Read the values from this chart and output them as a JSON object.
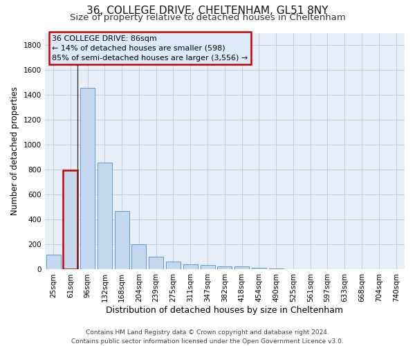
{
  "title1": "36, COLLEGE DRIVE, CHELTENHAM, GL51 8NY",
  "title2": "Size of property relative to detached houses in Cheltenham",
  "xlabel": "Distribution of detached houses by size in Cheltenham",
  "ylabel": "Number of detached properties",
  "footnote1": "Contains HM Land Registry data © Crown copyright and database right 2024.",
  "footnote2": "Contains public sector information licensed under the Open Government Licence v3.0.",
  "categories": [
    "25sqm",
    "61sqm",
    "96sqm",
    "132sqm",
    "168sqm",
    "204sqm",
    "239sqm",
    "275sqm",
    "311sqm",
    "347sqm",
    "382sqm",
    "418sqm",
    "454sqm",
    "490sqm",
    "525sqm",
    "561sqm",
    "597sqm",
    "633sqm",
    "668sqm",
    "704sqm",
    "740sqm"
  ],
  "values": [
    120,
    795,
    1460,
    860,
    470,
    200,
    100,
    65,
    40,
    35,
    25,
    25,
    15,
    8,
    5,
    3,
    2,
    2,
    2,
    2,
    2
  ],
  "bar_color": "#c5d8f0",
  "bar_edge_color": "#5b9bd5",
  "highlight_bar_index": 1,
  "highlight_bar_edge_color": "#cc0000",
  "vline_color": "#333333",
  "annotation_text": "36 COLLEGE DRIVE: 86sqm\n← 14% of detached houses are smaller (598)\n85% of semi-detached houses are larger (3,556) →",
  "annotation_box_color": "#dce9f8",
  "annotation_box_edge_color": "#cc0000",
  "ylim": [
    0,
    1900
  ],
  "yticks": [
    0,
    200,
    400,
    600,
    800,
    1000,
    1200,
    1400,
    1600,
    1800
  ],
  "background_color": "#ffffff",
  "ax_background": "#e8eef8",
  "grid_color": "#c0c8d8",
  "title1_fontsize": 11,
  "title2_fontsize": 9.5,
  "xlabel_fontsize": 9,
  "ylabel_fontsize": 8.5,
  "tick_fontsize": 7.5,
  "annotation_fontsize": 8
}
